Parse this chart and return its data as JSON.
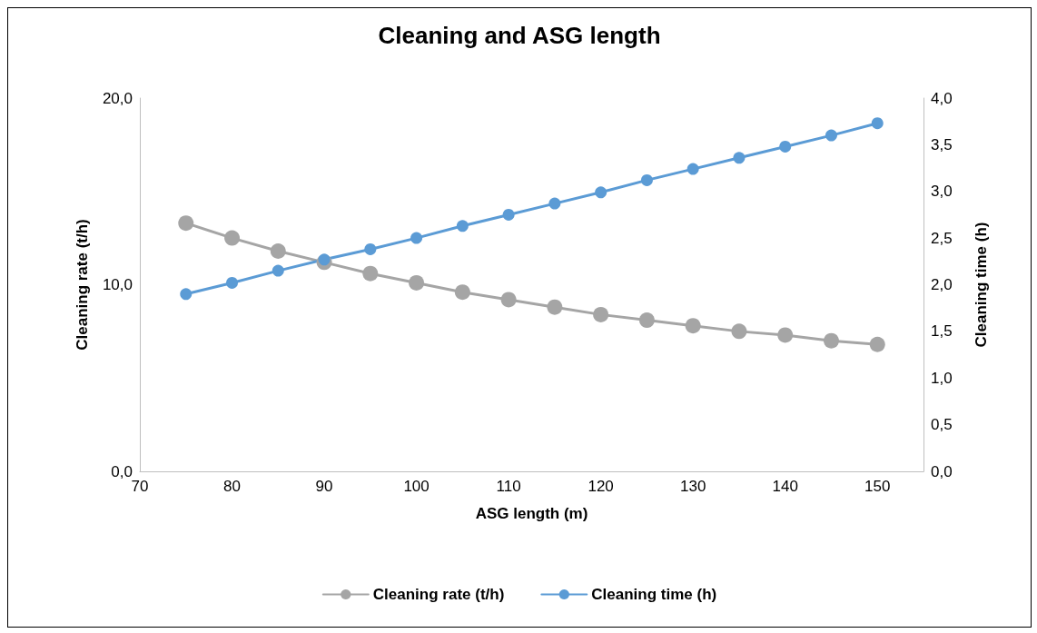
{
  "chart_data": {
    "type": "line",
    "title": "Cleaning and ASG length",
    "xlabel": "ASG length (m)",
    "ylabel": "Cleaning rate (t/h)",
    "y2label": "Cleaning time (h)",
    "x": [
      75,
      80,
      85,
      90,
      95,
      100,
      105,
      110,
      115,
      120,
      125,
      130,
      135,
      140,
      145,
      150
    ],
    "series": [
      {
        "name": "Cleaning rate (t/h)",
        "color": "#a5a5a5",
        "values": [
          13.3,
          12.5,
          11.8,
          11.2,
          10.6,
          10.1,
          9.6,
          9.2,
          8.8,
          8.4,
          8.1,
          7.8,
          7.5,
          7.3,
          7.0,
          6.8
        ]
      },
      {
        "name": "Cleaning time (h)",
        "color": "#5b9bd5",
        "axis": "y2",
        "values": [
          1.9,
          2.02,
          2.15,
          2.27,
          2.38,
          2.5,
          2.63,
          2.75,
          2.87,
          2.99,
          3.12,
          3.24,
          3.36,
          3.48,
          3.6,
          3.73
        ]
      }
    ],
    "xlim": [
      70,
      155
    ],
    "xticks": [
      70,
      80,
      90,
      100,
      110,
      120,
      130,
      140,
      150
    ],
    "ylim": [
      0,
      20
    ],
    "yticks": [
      {
        "value": 0,
        "label": "0,0"
      },
      {
        "value": 10,
        "label": "10,0"
      },
      {
        "value": 20,
        "label": "20,0"
      }
    ],
    "y2lim": [
      0,
      4
    ],
    "y2ticks": [
      {
        "value": 0,
        "label": "0,0"
      },
      {
        "value": 0.5,
        "label": "0,5"
      },
      {
        "value": 1,
        "label": "1,0"
      },
      {
        "value": 1.5,
        "label": "1,5"
      },
      {
        "value": 2,
        "label": "2,0"
      },
      {
        "value": 2.5,
        "label": "2,5"
      },
      {
        "value": 3,
        "label": "3,0"
      },
      {
        "value": 3.5,
        "label": "3,5"
      },
      {
        "value": 4,
        "label": "4,0"
      }
    ],
    "grid": false,
    "legend": "bottom",
    "marker": "circle",
    "line_style": "solid"
  }
}
